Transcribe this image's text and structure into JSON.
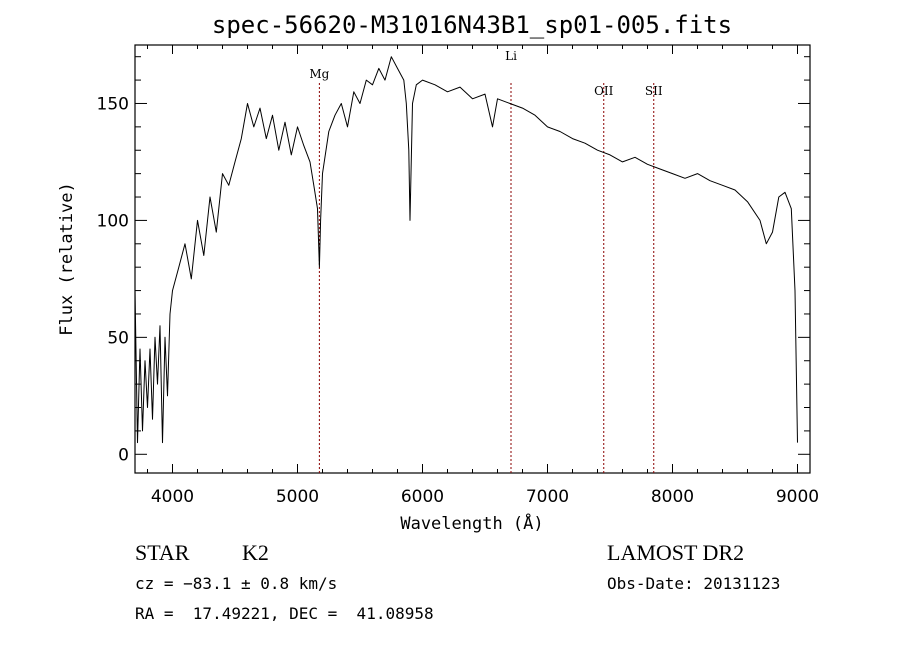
{
  "chart_data": {
    "type": "line",
    "title": "spec-56620-M31016N43B1_sp01-005.fits",
    "xlabel": "Wavelength (Å)",
    "ylabel": "Flux (relative)",
    "xlim": [
      3700,
      9100
    ],
    "ylim": [
      -8,
      175
    ],
    "xticks": [
      4000,
      5000,
      6000,
      7000,
      8000,
      9000
    ],
    "yticks": [
      0,
      50,
      100,
      150
    ],
    "grid": false,
    "line_color": "#000000",
    "marker_color": "#8b0000",
    "series": [
      {
        "x": [
          3700,
          3720,
          3740,
          3760,
          3780,
          3800,
          3820,
          3840,
          3860,
          3880,
          3900,
          3920,
          3940,
          3960,
          3980,
          4000,
          4050,
          4100,
          4150,
          4200,
          4250,
          4300,
          4350,
          4400,
          4450,
          4500,
          4550,
          4600,
          4650,
          4700,
          4750,
          4800,
          4850,
          4900,
          4950,
          5000,
          5050,
          5100,
          5130,
          5160,
          5175,
          5185,
          5200,
          5250,
          5300,
          5350,
          5400,
          5450,
          5500,
          5550,
          5600,
          5650,
          5700,
          5750,
          5800,
          5850,
          5870,
          5890,
          5900,
          5920,
          5950,
          6000,
          6100,
          6200,
          6300,
          6400,
          6500,
          6560,
          6600,
          6700,
          6800,
          6900,
          7000,
          7100,
          7200,
          7300,
          7400,
          7500,
          7600,
          7700,
          7800,
          7900,
          8000,
          8100,
          8200,
          8300,
          8400,
          8500,
          8600,
          8700,
          8750,
          8800,
          8850,
          8900,
          8950,
          8980,
          9000
        ],
        "values": [
          70,
          5,
          45,
          10,
          40,
          20,
          45,
          15,
          50,
          30,
          55,
          5,
          50,
          25,
          60,
          70,
          80,
          90,
          75,
          100,
          85,
          110,
          95,
          120,
          115,
          125,
          135,
          150,
          140,
          148,
          135,
          145,
          130,
          142,
          128,
          140,
          132,
          125,
          115,
          105,
          80,
          100,
          120,
          138,
          145,
          150,
          140,
          155,
          150,
          160,
          158,
          165,
          160,
          170,
          165,
          160,
          150,
          130,
          100,
          150,
          158,
          160,
          158,
          155,
          157,
          152,
          154,
          140,
          152,
          150,
          148,
          145,
          140,
          138,
          135,
          133,
          130,
          128,
          125,
          127,
          124,
          122,
          120,
          118,
          120,
          117,
          115,
          113,
          108,
          100,
          90,
          95,
          110,
          112,
          105,
          70,
          5
        ]
      }
    ],
    "lines": [
      {
        "name": "Mg",
        "x": 5175
      },
      {
        "name": "Li",
        "x": 6708
      },
      {
        "name": "OII",
        "x": 7450
      },
      {
        "name": "SII",
        "x": 7850
      }
    ]
  },
  "info": {
    "type": "STAR",
    "subclass": "K2",
    "survey": "LAMOST DR2",
    "cz": "cz = −83.1 ± 0.8 km/s",
    "obs_date": "Obs-Date: 20131123",
    "coords": "RA =  17.49221, DEC =  41.08958"
  }
}
